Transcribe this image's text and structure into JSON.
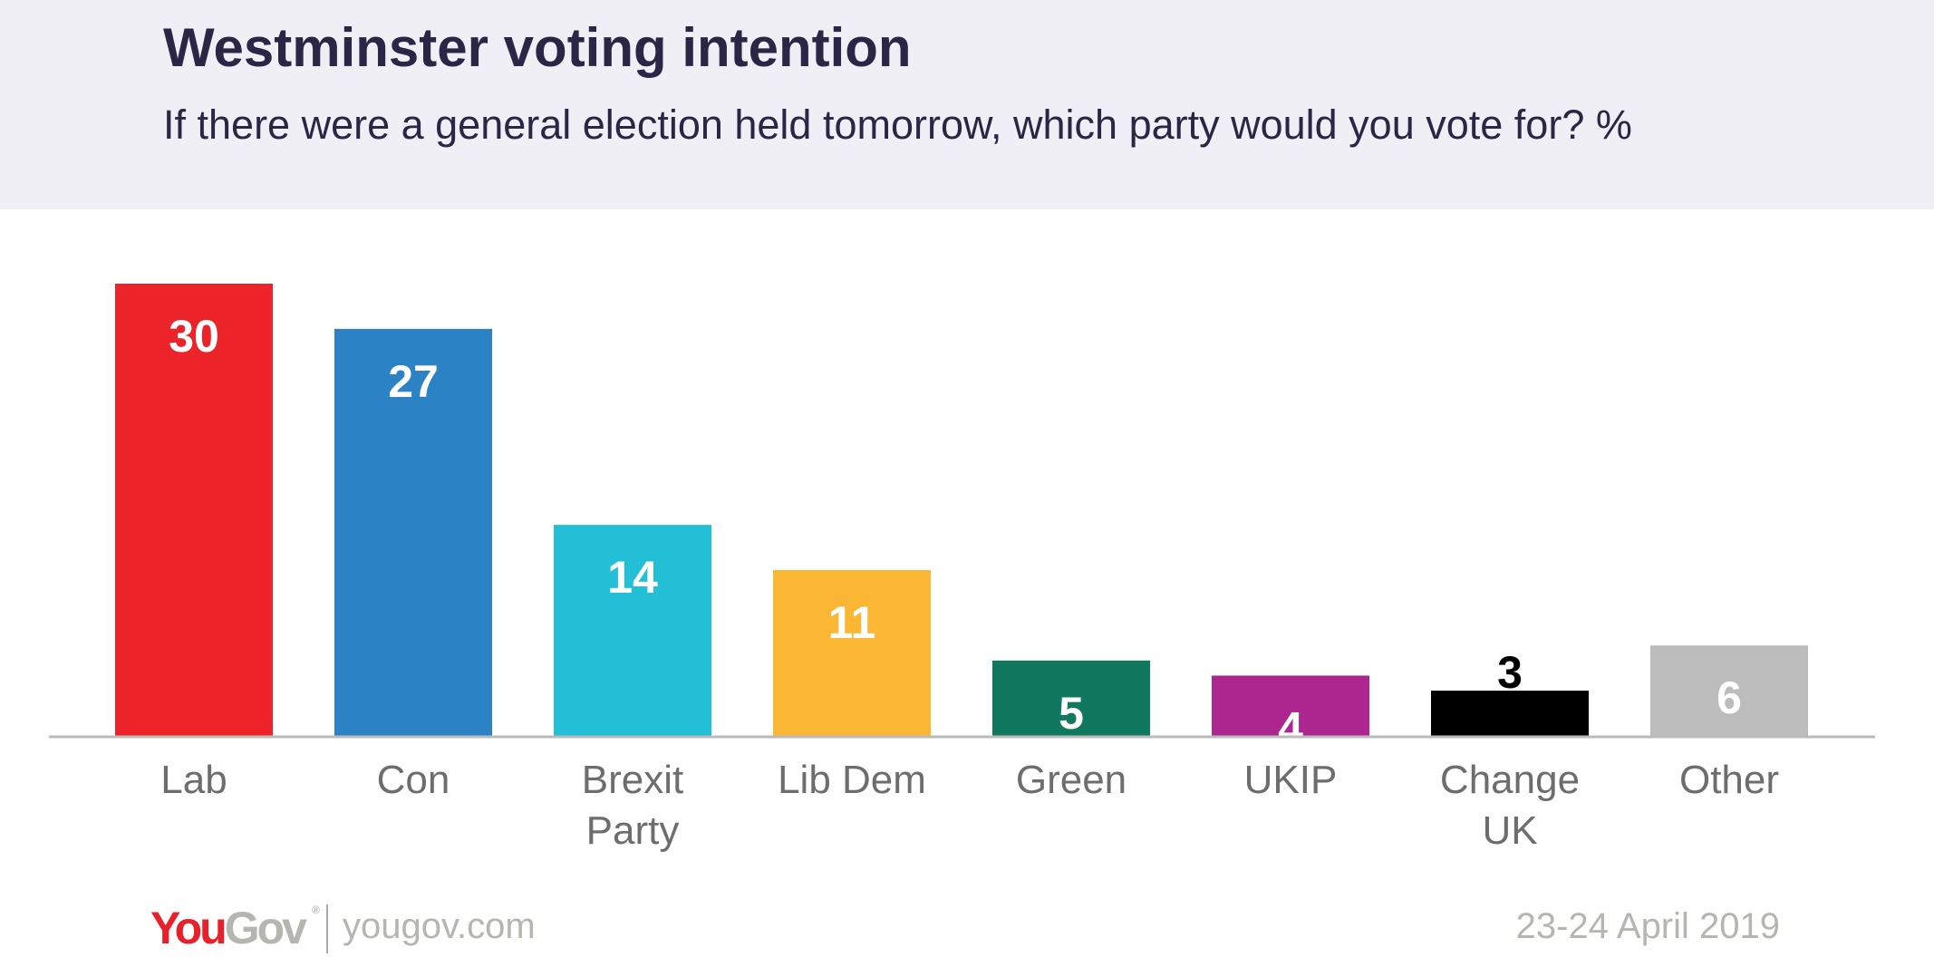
{
  "header": {
    "title": "Westminster voting intention",
    "subtitle": "If there were a general election held tomorrow, which party would you vote for? %"
  },
  "chart_data": {
    "type": "bar",
    "title": "Westminster voting intention",
    "subtitle": "If there were a general election held tomorrow, which party would you vote for? %",
    "categories": [
      [
        "Lab"
      ],
      [
        "Con"
      ],
      [
        "Brexit",
        "Party"
      ],
      [
        "Lib Dem"
      ],
      [
        "Green"
      ],
      [
        "UKIP"
      ],
      [
        "Change",
        "UK"
      ],
      [
        "Other"
      ]
    ],
    "values": [
      30,
      27,
      14,
      11,
      5,
      4,
      3,
      6
    ],
    "colors": [
      "#ec2329",
      "#2b82c5",
      "#23bfd6",
      "#fbb634",
      "#10785e",
      "#ad2690",
      "#000000",
      "#bdbcbc"
    ],
    "label_colors": [
      "#ffffff",
      "#ffffff",
      "#ffffff",
      "#ffffff",
      "#ffffff",
      "#ffffff",
      "#000000",
      "#ffffff"
    ],
    "label_outside": [
      false,
      false,
      false,
      false,
      false,
      false,
      true,
      false
    ],
    "ylim": [
      0,
      30
    ],
    "grid": false,
    "axis_color": "#bbbbbb"
  },
  "footer": {
    "logo": "YouGov",
    "url": "yougov.com",
    "date": "23-24 April 2019"
  }
}
